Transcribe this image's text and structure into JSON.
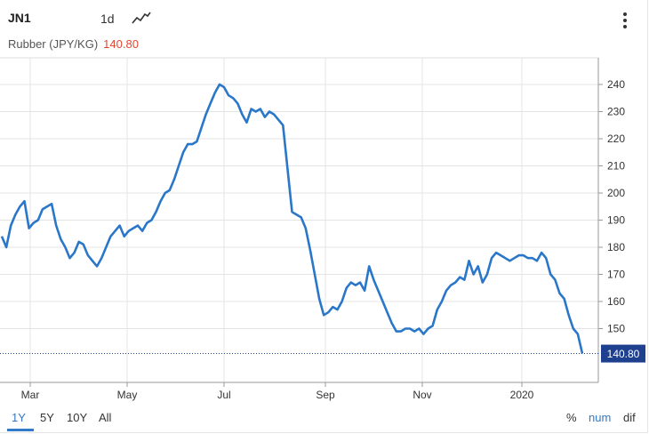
{
  "header": {
    "symbol": "JN1",
    "interval": "1d",
    "title": "Rubber (JPY/KG)",
    "last_price": "140.80",
    "price_color": "#e4462f",
    "line_icon": "line-chart-icon",
    "menu_icon": "more-vertical-icon"
  },
  "footer": {
    "ranges": [
      "1Y",
      "5Y",
      "10Y",
      "All"
    ],
    "selected_range": "1Y",
    "modes": [
      "%",
      "num",
      "dif"
    ],
    "selected_mode": "num"
  },
  "chart_data": {
    "type": "line",
    "title": "Rubber (JPY/KG)",
    "xlabel": "",
    "ylabel": "",
    "x_tick_labels": [
      "Mar",
      "May",
      "Jul",
      "Sep",
      "Nov",
      "2020"
    ],
    "y_tick_labels": [
      "150",
      "160",
      "170",
      "180",
      "190",
      "200",
      "210",
      "220",
      "230",
      "240"
    ],
    "ylim": [
      130,
      250
    ],
    "grid": true,
    "line_color": "#2a77c9",
    "last_value_label": "140.80",
    "series": [
      {
        "values": [
          184,
          180,
          188,
          192,
          195,
          197,
          187,
          189,
          190,
          194,
          195,
          196,
          188,
          183,
          180,
          176,
          178,
          182,
          181,
          177,
          175,
          173,
          176,
          180,
          184,
          186,
          188,
          184,
          186,
          187,
          188,
          186,
          189,
          190,
          193,
          197,
          200,
          201,
          205,
          210,
          215,
          218,
          218,
          219,
          224,
          229,
          233,
          237,
          240,
          239,
          236,
          235,
          233,
          229,
          226,
          231,
          230,
          231,
          228,
          230,
          229,
          227,
          225,
          209,
          193,
          192,
          191,
          187,
          179,
          170,
          161,
          155,
          156,
          158,
          157,
          160,
          165,
          167,
          166,
          167,
          164,
          173,
          168,
          164,
          160,
          156,
          152,
          149,
          149,
          150,
          150,
          149,
          150,
          148,
          150,
          151,
          157,
          160,
          164,
          166,
          167,
          169,
          168,
          175,
          170,
          173,
          167,
          170,
          176,
          178,
          177,
          176,
          175,
          176,
          177,
          177,
          176,
          176,
          175,
          178,
          176,
          170,
          168,
          163,
          161,
          155,
          150,
          148,
          141
        ]
      }
    ]
  }
}
